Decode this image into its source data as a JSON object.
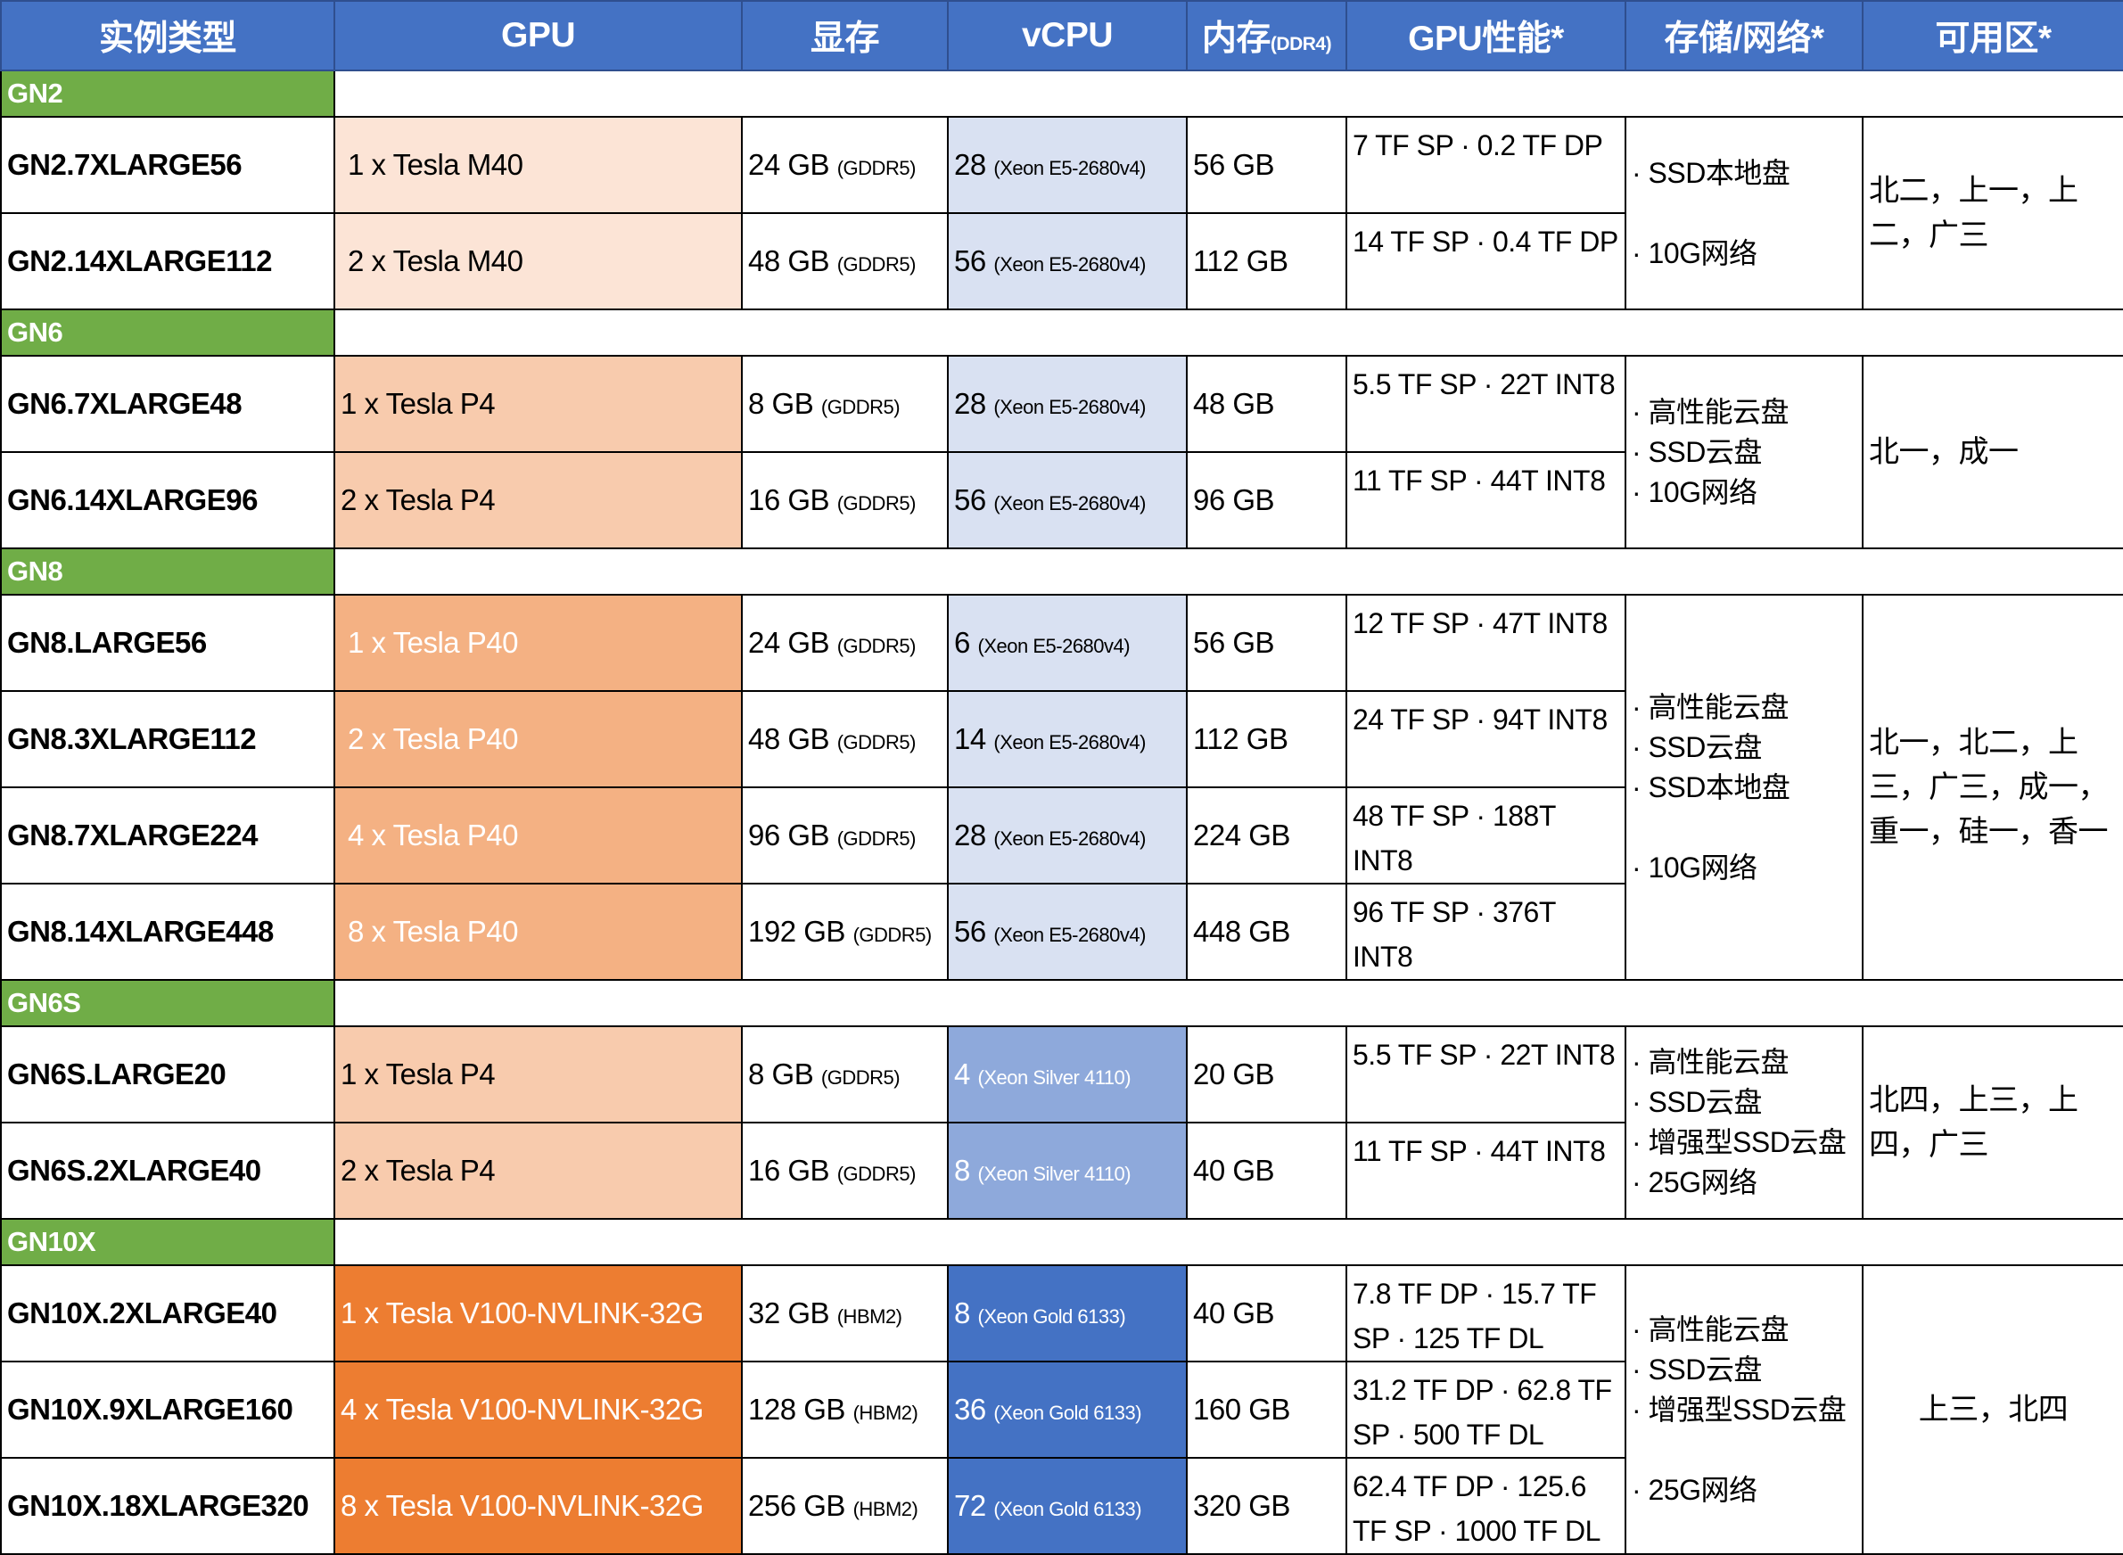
{
  "headers": [
    "实例类型",
    "GPU",
    "显存",
    "vCPU",
    "内存",
    "GPU性能*",
    "存储/网络*",
    "可用区*"
  ],
  "memory_header_note": "(DDR4)",
  "colors": {
    "header": "#4472C4",
    "group": "#70AD47",
    "M40": "#FCE4D6",
    "P4": "#F8CBAD",
    "P40": "#F4B183",
    "V100": "#ED7D31",
    "E5": "#D9E1F2",
    "Silver": "#8EA9DB",
    "Gold": "#4472C4"
  },
  "groups": [
    {
      "name": "GN2",
      "gpu_class": "M40",
      "cpu_class": "E5",
      "zone_align": "left",
      "storage": [
        "· SSD本地盘",
        "",
        "· 10G网络"
      ],
      "zone": "北二，上一，上二，广三",
      "rows": [
        {
          "type": "GN2.7XLARGE56",
          "gpu": "1 x Tesla M40",
          "mem": "24 GB",
          "mem_type": "(GDDR5)",
          "vcpu": "28",
          "cpu": "(Xeon E5-2680v4)",
          "ram": "56 GB",
          "perf": "7 TF SP · 0.2 TF DP"
        },
        {
          "type": "GN2.14XLARGE112",
          "gpu": "2 x Tesla M40",
          "mem": "48 GB",
          "mem_type": "(GDDR5)",
          "vcpu": "56",
          "cpu": "(Xeon E5-2680v4)",
          "ram": "112 GB",
          "perf": "14 TF SP · 0.4 TF DP"
        }
      ]
    },
    {
      "name": "GN6",
      "gpu_class": "P4",
      "cpu_class": "E5",
      "zone_align": "left",
      "storage": [
        "· 高性能云盘",
        "· SSD云盘",
        "· 10G网络"
      ],
      "zone": "北一，成一",
      "rows": [
        {
          "type": "GN6.7XLARGE48",
          "gpu": "1 x Tesla P4",
          "mem": "8 GB",
          "mem_type": "(GDDR5)",
          "vcpu": "28",
          "cpu": "(Xeon E5-2680v4)",
          "ram": "48  GB",
          "perf": "5.5 TF SP · 22T INT8"
        },
        {
          "type": "GN6.14XLARGE96",
          "gpu": "2 x Tesla P4",
          "mem": "16 GB",
          "mem_type": "(GDDR5)",
          "vcpu": "56",
          "cpu": "(Xeon E5-2680v4)",
          "ram": "96  GB",
          "perf": "11 TF SP · 44T INT8"
        }
      ]
    },
    {
      "name": "GN8",
      "gpu_class": "P40",
      "cpu_class": "E5",
      "zone_align": "left",
      "storage": [
        "· 高性能云盘",
        "· SSD云盘",
        "· SSD本地盘",
        "",
        "· 10G网络"
      ],
      "zone": "北一，北二，上三，广三，成一，重一，硅一，香一",
      "rows": [
        {
          "type": "GN8.LARGE56",
          "gpu": "1 x Tesla P40",
          "mem": "24 GB",
          "mem_type": "(GDDR5)",
          "vcpu": "6",
          "cpu": "(Xeon E5-2680v4)",
          "ram": "56 GB",
          "perf": "12 TF SP · 47T INT8"
        },
        {
          "type": "GN8.3XLARGE112",
          "gpu": "2 x Tesla P40",
          "mem": "48 GB",
          "mem_type": "(GDDR5)",
          "vcpu": "14",
          "cpu": "(Xeon E5-2680v4)",
          "ram": "112 GB",
          "perf": "24 TF SP · 94T INT8"
        },
        {
          "type": "GN8.7XLARGE224",
          "gpu": "4 x Tesla P40",
          "mem": "96 GB",
          "mem_type": "(GDDR5)",
          "vcpu": "28",
          "cpu": "(Xeon E5-2680v4)",
          "ram": "224 GB",
          "perf": "48 TF SP · 188T INT8"
        },
        {
          "type": "GN8.14XLARGE448",
          "gpu": "8 x Tesla P40",
          "mem": "192 GB",
          "mem_type": "(GDDR5)",
          "vcpu": "56",
          "cpu": "(Xeon E5-2680v4)",
          "ram": "448 GB",
          "perf": "96 TF SP · 376T INT8"
        }
      ]
    },
    {
      "name": "GN6S",
      "gpu_class": "P4",
      "cpu_class": "Silver",
      "zone_align": "left",
      "storage": [
        "· 高性能云盘",
        "· SSD云盘",
        "· 增强型SSD云盘",
        "· 25G网络"
      ],
      "zone": "北四，上三，上四，广三",
      "rows": [
        {
          "type": "GN6S.LARGE20",
          "gpu": "1 x Tesla P4",
          "mem": "8 GB",
          "mem_type": "(GDDR5)",
          "vcpu": "4",
          "cpu": "(Xeon Silver 4110)",
          "ram": "20  GB",
          "perf": "5.5 TF SP · 22T INT8"
        },
        {
          "type": "GN6S.2XLARGE40",
          "gpu": "2 x Tesla P4",
          "mem": "16 GB",
          "mem_type": "(GDDR5)",
          "vcpu": "8",
          "cpu": "(Xeon Silver 4110)",
          "ram": "40  GB",
          "perf": "11 TF SP · 44T INT8"
        }
      ]
    },
    {
      "name": "GN10X",
      "gpu_class": "V100",
      "cpu_class": "Gold",
      "zone_align": "center",
      "storage": [
        "· 高性能云盘",
        "· SSD云盘",
        "· 增强型SSD云盘",
        "",
        "· 25G网络"
      ],
      "zone": "上三，北四",
      "rows": [
        {
          "type": "GN10X.2XLARGE40",
          "gpu": "1 x Tesla V100-NVLINK-32G",
          "mem": "32 GB",
          "mem_type": "(HBM2)",
          "vcpu": "8",
          "cpu": "(Xeon Gold 6133)",
          "ram": "40  GB",
          "perf": "7.8 TF DP · 15.7 TF SP · 125 TF DL"
        },
        {
          "type": "GN10X.9XLARGE160",
          "gpu": "4 x Tesla V100-NVLINK-32G",
          "mem": "128 GB",
          "mem_type": "(HBM2)",
          "vcpu": "36",
          "cpu": "(Xeon Gold 6133)",
          "ram": "160  GB",
          "perf": "31.2 TF DP · 62.8 TF SP · 500 TF DL"
        },
        {
          "type": "GN10X.18XLARGE320",
          "gpu": "8 x Tesla V100-NVLINK-32G",
          "mem": "256 GB",
          "mem_type": "(HBM2)",
          "vcpu": "72",
          "cpu": "(Xeon Gold 6133)",
          "ram": "320  GB",
          "perf": "62.4 TF DP · 125.6 TF SP · 1000 TF DL"
        }
      ]
    }
  ]
}
